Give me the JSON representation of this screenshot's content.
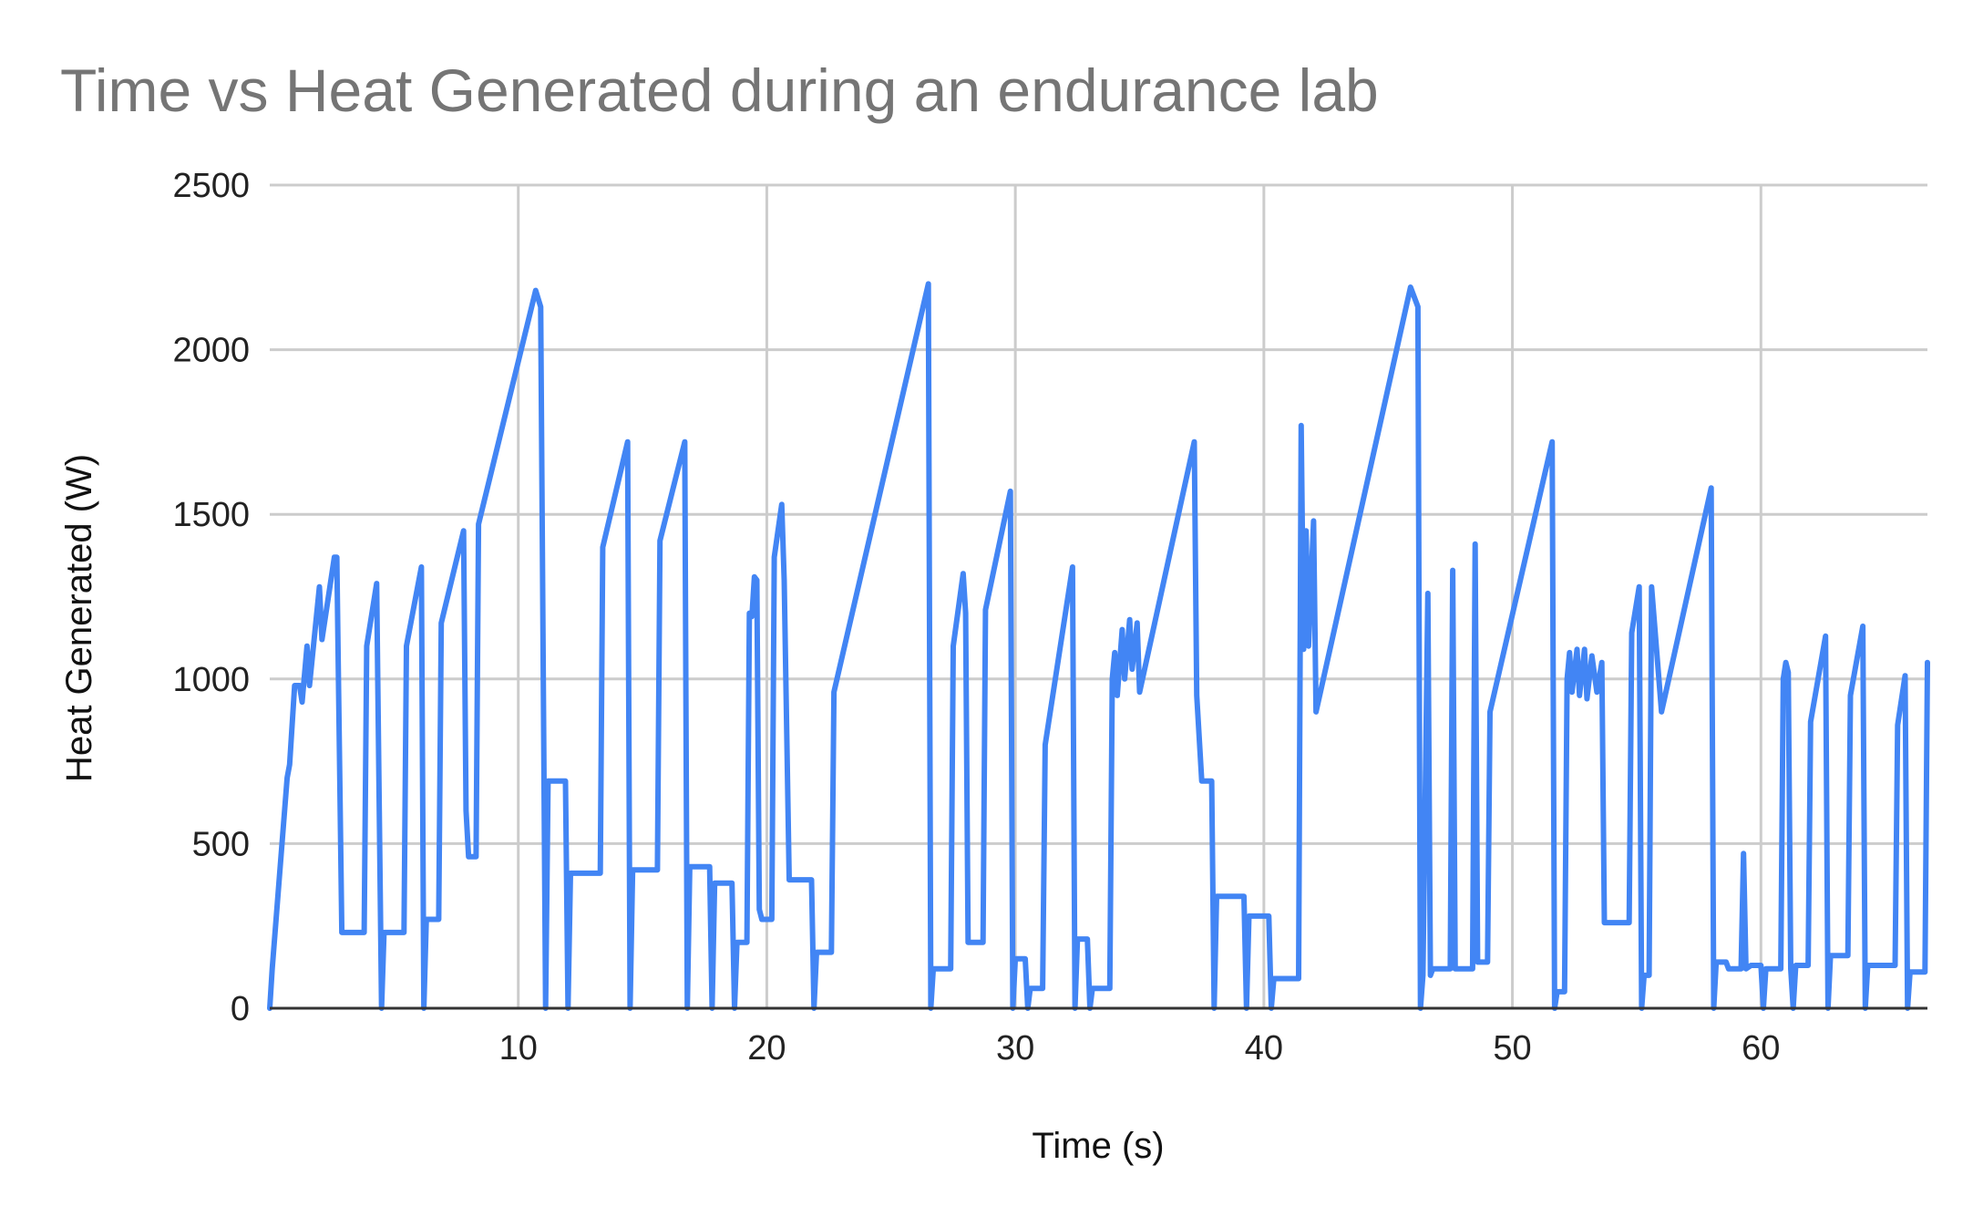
{
  "chart_data": {
    "type": "line",
    "title": "Time vs Heat Generated during an endurance lab",
    "xlabel": "Time (s)",
    "ylabel": "Heat Generated (W)",
    "xlim": [
      0,
      66.7
    ],
    "ylim": [
      0,
      2500
    ],
    "xticks": [
      10,
      20,
      30,
      40,
      50,
      60
    ],
    "yticks": [
      0,
      500,
      1000,
      1500,
      2000,
      2500
    ],
    "grid": true,
    "legend": "none",
    "color": "#4285f4",
    "series": [
      {
        "values": [
          [
            0,
            0
          ],
          [
            0.1,
            120
          ],
          [
            0.7,
            700
          ],
          [
            0.8,
            740
          ],
          [
            1.0,
            980
          ],
          [
            1.2,
            980
          ],
          [
            1.3,
            930
          ],
          [
            1.5,
            1100
          ],
          [
            1.6,
            980
          ],
          [
            2.0,
            1280
          ],
          [
            2.1,
            1120
          ],
          [
            2.6,
            1370
          ],
          [
            2.7,
            1370
          ],
          [
            2.9,
            230
          ],
          [
            3.8,
            230
          ],
          [
            3.9,
            1100
          ],
          [
            4.3,
            1290
          ],
          [
            4.5,
            0
          ],
          [
            4.6,
            230
          ],
          [
            5.4,
            230
          ],
          [
            5.5,
            1100
          ],
          [
            6.1,
            1340
          ],
          [
            6.2,
            0
          ],
          [
            6.3,
            270
          ],
          [
            6.8,
            270
          ],
          [
            6.9,
            1170
          ],
          [
            7.8,
            1450
          ],
          [
            7.9,
            600
          ],
          [
            8.0,
            460
          ],
          [
            8.3,
            460
          ],
          [
            8.4,
            1470
          ],
          [
            10.7,
            2180
          ],
          [
            10.9,
            2130
          ],
          [
            11.1,
            0
          ],
          [
            11.2,
            690
          ],
          [
            11.9,
            690
          ],
          [
            12.0,
            0
          ],
          [
            12.1,
            410
          ],
          [
            13.3,
            410
          ],
          [
            13.4,
            1400
          ],
          [
            14.4,
            1720
          ],
          [
            14.5,
            0
          ],
          [
            14.6,
            420
          ],
          [
            15.6,
            420
          ],
          [
            15.7,
            1420
          ],
          [
            16.7,
            1720
          ],
          [
            16.8,
            0
          ],
          [
            16.9,
            430
          ],
          [
            17.7,
            430
          ],
          [
            17.8,
            0
          ],
          [
            17.9,
            380
          ],
          [
            18.6,
            380
          ],
          [
            18.7,
            0
          ],
          [
            18.8,
            200
          ],
          [
            19.2,
            200
          ],
          [
            19.3,
            1200
          ],
          [
            19.4,
            1190
          ],
          [
            19.5,
            1310
          ],
          [
            19.6,
            1300
          ],
          [
            19.7,
            300
          ],
          [
            19.8,
            270
          ],
          [
            20.2,
            270
          ],
          [
            20.3,
            1370
          ],
          [
            20.6,
            1530
          ],
          [
            20.7,
            1300
          ],
          [
            20.9,
            390
          ],
          [
            21.8,
            390
          ],
          [
            21.9,
            0
          ],
          [
            22.0,
            170
          ],
          [
            22.6,
            170
          ],
          [
            22.7,
            960
          ],
          [
            26.5,
            2200
          ],
          [
            26.6,
            0
          ],
          [
            26.7,
            120
          ],
          [
            27.4,
            120
          ],
          [
            27.5,
            1100
          ],
          [
            27.9,
            1320
          ],
          [
            28.0,
            1200
          ],
          [
            28.1,
            200
          ],
          [
            28.7,
            200
          ],
          [
            28.8,
            1210
          ],
          [
            29.8,
            1570
          ],
          [
            29.9,
            0
          ],
          [
            30.0,
            150
          ],
          [
            30.4,
            150
          ],
          [
            30.5,
            0
          ],
          [
            30.6,
            60
          ],
          [
            31.1,
            60
          ],
          [
            31.2,
            800
          ],
          [
            32.3,
            1340
          ],
          [
            32.4,
            0
          ],
          [
            32.5,
            210
          ],
          [
            32.9,
            210
          ],
          [
            33.0,
            0
          ],
          [
            33.1,
            60
          ],
          [
            33.8,
            60
          ],
          [
            33.9,
            1000
          ],
          [
            34.0,
            1080
          ],
          [
            34.1,
            950
          ],
          [
            34.3,
            1150
          ],
          [
            34.4,
            1000
          ],
          [
            34.6,
            1180
          ],
          [
            34.7,
            1030
          ],
          [
            34.9,
            1170
          ],
          [
            35.0,
            960
          ],
          [
            37.2,
            1720
          ],
          [
            37.3,
            950
          ],
          [
            37.5,
            690
          ],
          [
            37.9,
            690
          ],
          [
            38.0,
            0
          ],
          [
            38.1,
            340
          ],
          [
            39.2,
            340
          ],
          [
            39.3,
            0
          ],
          [
            39.4,
            280
          ],
          [
            40.2,
            280
          ],
          [
            40.3,
            0
          ],
          [
            40.4,
            90
          ],
          [
            41.4,
            90
          ],
          [
            41.5,
            1770
          ],
          [
            41.6,
            1090
          ],
          [
            41.7,
            1450
          ],
          [
            41.8,
            1100
          ],
          [
            42.0,
            1480
          ],
          [
            42.1,
            900
          ],
          [
            45.9,
            2190
          ],
          [
            46.2,
            2130
          ],
          [
            46.3,
            0
          ],
          [
            46.4,
            100
          ],
          [
            46.6,
            1260
          ],
          [
            46.7,
            100
          ],
          [
            46.8,
            120
          ],
          [
            47.5,
            120
          ],
          [
            47.6,
            1330
          ],
          [
            47.7,
            120
          ],
          [
            48.4,
            120
          ],
          [
            48.5,
            1410
          ],
          [
            48.6,
            140
          ],
          [
            49.0,
            140
          ],
          [
            49.1,
            900
          ],
          [
            51.6,
            1720
          ],
          [
            51.7,
            0
          ],
          [
            51.8,
            50
          ],
          [
            52.1,
            50
          ],
          [
            52.2,
            1000
          ],
          [
            52.3,
            1080
          ],
          [
            52.4,
            960
          ],
          [
            52.6,
            1090
          ],
          [
            52.7,
            950
          ],
          [
            52.9,
            1090
          ],
          [
            53.0,
            940
          ],
          [
            53.2,
            1070
          ],
          [
            53.4,
            960
          ],
          [
            53.6,
            1050
          ],
          [
            53.7,
            260
          ],
          [
            54.7,
            260
          ],
          [
            54.8,
            1140
          ],
          [
            55.1,
            1280
          ],
          [
            55.2,
            0
          ],
          [
            55.3,
            100
          ],
          [
            55.5,
            100
          ],
          [
            55.6,
            1280
          ],
          [
            56.0,
            900
          ],
          [
            58.0,
            1580
          ],
          [
            58.1,
            0
          ],
          [
            58.2,
            140
          ],
          [
            58.6,
            140
          ],
          [
            58.7,
            120
          ],
          [
            59.2,
            120
          ],
          [
            59.3,
            470
          ],
          [
            59.4,
            120
          ],
          [
            59.6,
            130
          ],
          [
            60.0,
            130
          ],
          [
            60.1,
            0
          ],
          [
            60.2,
            120
          ],
          [
            60.8,
            120
          ],
          [
            60.9,
            1000
          ],
          [
            61.0,
            1050
          ],
          [
            61.1,
            1020
          ],
          [
            61.2,
            120
          ],
          [
            61.3,
            0
          ],
          [
            61.4,
            130
          ],
          [
            61.9,
            130
          ],
          [
            62.0,
            870
          ],
          [
            62.6,
            1130
          ],
          [
            62.7,
            0
          ],
          [
            62.8,
            160
          ],
          [
            63.5,
            160
          ],
          [
            63.6,
            950
          ],
          [
            64.1,
            1160
          ],
          [
            64.2,
            0
          ],
          [
            64.3,
            130
          ],
          [
            65.4,
            130
          ],
          [
            65.5,
            860
          ],
          [
            65.8,
            1010
          ],
          [
            65.9,
            0
          ],
          [
            66.0,
            110
          ],
          [
            66.6,
            110
          ],
          [
            66.7,
            1050
          ]
        ]
      }
    ]
  }
}
